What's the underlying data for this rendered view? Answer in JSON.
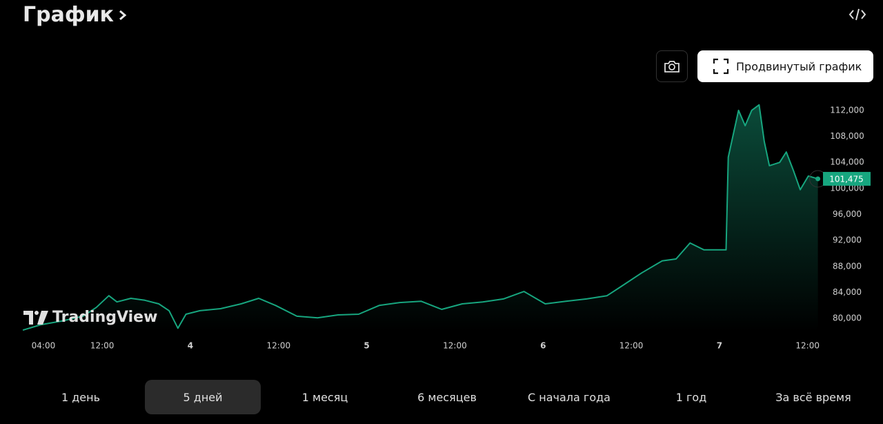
{
  "header": {
    "title": "График"
  },
  "buttons": {
    "advanced_chart": "Продвинутый график"
  },
  "brand": "TradingView",
  "periods": [
    "1 день",
    "5 дней",
    "1 месяц",
    "6 месяцев",
    "С начала года",
    "1 год",
    "За всё время"
  ],
  "active_period": 1,
  "chart_data": {
    "type": "line",
    "series": [
      {
        "color": "#17a67f",
        "x": [
          1.2,
          3.7,
          6.5,
          9.4,
          11.2,
          12.9,
          14.0,
          15.9,
          17.8,
          19.7,
          21.1,
          22.3,
          23.4,
          25.3,
          28.1,
          30.9,
          33.3,
          35.6,
          38.5,
          41.3,
          44.1,
          46.9,
          49.7,
          52.5,
          55.4,
          58.2,
          61.0,
          63.8,
          66.6,
          69.4,
          72.3,
          75.1,
          77.9,
          80.7,
          82.6,
          85.4,
          88.2,
          90.1,
          92.0,
          93.9,
          96.2,
          96.9,
          97.2,
          98.6,
          99.5,
          100.4,
          101.4,
          102.1,
          102.8,
          104.2,
          105.1,
          106.1,
          107.0,
          108.1,
          109.4
        ],
        "values": [
          78200,
          79050,
          79600,
          80350,
          81700,
          83500,
          82550,
          83100,
          82800,
          82250,
          81200,
          78500,
          80650,
          81200,
          81500,
          82250,
          83100,
          82000,
          80350,
          80100,
          80550,
          80650,
          82000,
          82450,
          82650,
          81400,
          82250,
          82550,
          83000,
          84150,
          82250,
          82650,
          83000,
          83500,
          84900,
          87000,
          88850,
          89150,
          91600,
          90550,
          90550,
          90550,
          104800,
          112000,
          109650,
          112000,
          112850,
          107200,
          103500,
          104000,
          105600,
          102650,
          99800,
          101900,
          101475
        ]
      }
    ],
    "last_value": {
      "value": 101475,
      "label": "101,475"
    },
    "xlim": [
      1,
      110
    ],
    "xticks": [
      {
        "value": 4,
        "label": "04:00"
      },
      {
        "value": 12,
        "label": "12:00"
      },
      {
        "value": 24,
        "label": "4"
      },
      {
        "value": 36,
        "label": "12:00"
      },
      {
        "value": 48,
        "label": "5"
      },
      {
        "value": 60,
        "label": "12:00"
      },
      {
        "value": 72,
        "label": "6"
      },
      {
        "value": 84,
        "label": "12:00"
      },
      {
        "value": 96,
        "label": "7"
      },
      {
        "value": 108,
        "label": "12:00"
      }
    ],
    "ylim": [
      78000,
      114000
    ],
    "yticks": [
      {
        "value": 80000,
        "label": "80,000"
      },
      {
        "value": 84000,
        "label": "84,000"
      },
      {
        "value": 88000,
        "label": "88,000"
      },
      {
        "value": 92000,
        "label": "92,000"
      },
      {
        "value": 96000,
        "label": "96,000"
      },
      {
        "value": 100000,
        "label": "100,000"
      },
      {
        "value": 104000,
        "label": "104,000"
      },
      {
        "value": 108000,
        "label": "108,000"
      },
      {
        "value": 112000,
        "label": "112,000"
      }
    ]
  }
}
